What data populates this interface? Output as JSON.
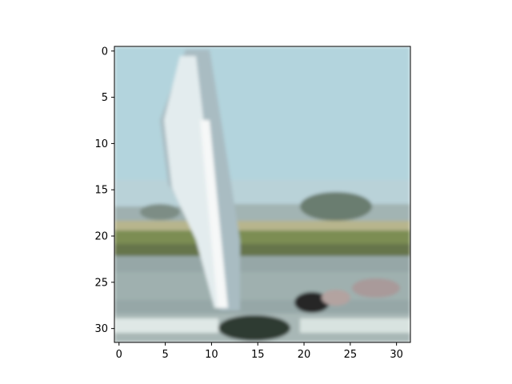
{
  "figure": {
    "background": "#ffffff",
    "frame_color": "#000000"
  },
  "image": {
    "subject": "pixelated photo of a sailboat on water with shoreline and trees",
    "palette": {
      "sky": "#b3d4dd",
      "sky_light": "#c0dde4",
      "sail_white": "#eef4f4",
      "sail_shadow": "#a9bcc2",
      "mast": "#f6f8f8",
      "trees_dark": "#6b7d70",
      "grass_yellow": "#b7b58d",
      "grass_green": "#7c8d53",
      "shore_dark": "#66744c",
      "water": "#96a7a7",
      "water_light": "#a8b7b6",
      "hull_dark": "#2f3a32",
      "boat_dark": "#262626",
      "boat_pink": "#a99a9a",
      "foreground_white": "#dfe8e6"
    }
  },
  "chart_data": {
    "type": "heatmap",
    "x_ticks": [
      "0",
      "5",
      "10",
      "15",
      "20",
      "25",
      "30"
    ],
    "y_ticks": [
      "0",
      "5",
      "10",
      "15",
      "20",
      "25",
      "30"
    ],
    "xlim": [
      -0.5,
      31.5
    ],
    "ylim": [
      31.5,
      -0.5
    ],
    "grid": false
  }
}
